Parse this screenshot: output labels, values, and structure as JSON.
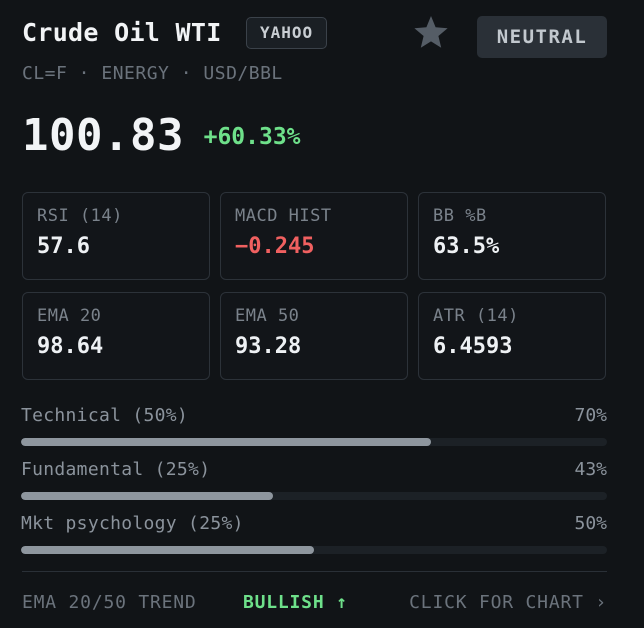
{
  "asset": {
    "name": "Crude Oil WTI",
    "source": "YAHOO",
    "subtitle": "CL=F · ENERGY · USD/BBL",
    "signal": "NEUTRAL",
    "price": "100.83",
    "change": "+60.33%",
    "favorite_icon": "star-icon"
  },
  "metrics": [
    {
      "label": "RSI (14)",
      "value": "57.6"
    },
    {
      "label": "MACD HIST",
      "value": "−0.245"
    },
    {
      "label": "BB %B",
      "value": "63.5%"
    },
    {
      "label": "EMA 20",
      "value": "98.64"
    },
    {
      "label": "EMA 50",
      "value": "93.28"
    },
    {
      "label": "ATR (14)",
      "value": "6.4593"
    }
  ],
  "scores": [
    {
      "label": "Technical (50%)",
      "pct": "70%",
      "fraction": 0.7
    },
    {
      "label": "Fundamental (25%)",
      "pct": "43%",
      "fraction": 0.43
    },
    {
      "label": "Mkt psychology (25%)",
      "pct": "50%",
      "fraction": 0.5
    }
  ],
  "footer": {
    "trend_label": "EMA 20/50 TREND",
    "trend_value": "BULLISH ↑",
    "chart_link": "CLICK FOR CHART ›"
  },
  "colors": {
    "positive": "#6ee08a",
    "negative": "#f06060",
    "background": "#111417"
  }
}
